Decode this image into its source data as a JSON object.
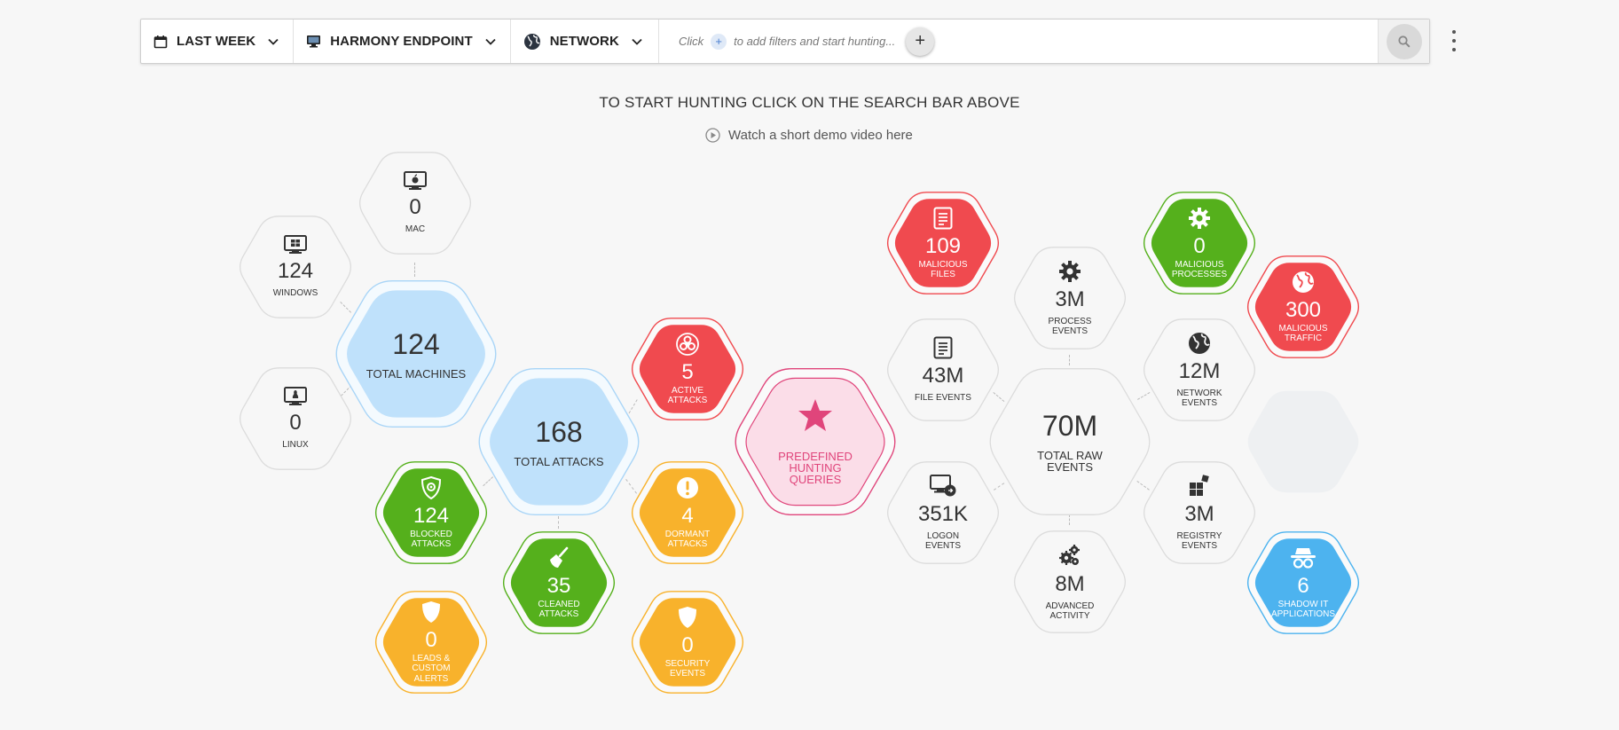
{
  "filters": {
    "time": "LAST WEEK",
    "source": "HARMONY ENDPOINT",
    "type": "NETWORK",
    "hint_click": "Click",
    "hint_rest": "to add filters and start hunting..."
  },
  "headline": "TO START HUNTING CLICK ON THE SEARCH BAR ABOVE",
  "demo_link": "Watch a short demo video here",
  "colors": {
    "red": "#f04a4f",
    "green": "#55b01c",
    "orange": "#f8b22c",
    "blue_light": "#bfe1fb",
    "blue": "#4db3ef",
    "pink": "#fbdde8",
    "pink_accent": "#e0457b"
  },
  "hex": {
    "mac": {
      "value": "0",
      "label": "MAC",
      "icon": "mac-icon"
    },
    "windows": {
      "value": "124",
      "label": "WINDOWS",
      "icon": "windows-icon"
    },
    "linux": {
      "value": "0",
      "label": "LINUX",
      "icon": "linux-icon"
    },
    "total_machines": {
      "value": "124",
      "label": "TOTAL MACHINES"
    },
    "total_attacks": {
      "value": "168",
      "label": "TOTAL ATTACKS"
    },
    "active_attacks": {
      "value": "5",
      "label": "ACTIVE ATTACKS",
      "icon": "biohazard-icon"
    },
    "dormant_attacks": {
      "value": "4",
      "label": "DORMANT ATTACKS",
      "icon": "exclamation-icon"
    },
    "blocked_attacks": {
      "value": "124",
      "label": "BLOCKED ATTACKS",
      "icon": "shield-icon"
    },
    "cleaned_attacks": {
      "value": "35",
      "label": "CLEANED ATTACKS",
      "icon": "broom-icon"
    },
    "leads_alerts": {
      "value": "0",
      "label": "LEADS & CUSTOM ALERTS",
      "icon": "shield-icon"
    },
    "security_events": {
      "value": "0",
      "label": "SECURITY EVENTS",
      "icon": "shield-icon"
    },
    "predefined": {
      "label": "PREDEFINED HUNTING QUERIES",
      "icon": "star-icon"
    },
    "malicious_files": {
      "value": "109",
      "label": "MALICIOUS FILES",
      "icon": "document-icon"
    },
    "file_events": {
      "value": "43M",
      "label": "FILE EVENTS",
      "icon": "document-icon"
    },
    "logon_events": {
      "value": "351K",
      "label": "LOGON EVENTS",
      "icon": "logon-icon"
    },
    "process_events": {
      "value": "3M",
      "label": "PROCESS EVENTS",
      "icon": "gear-icon"
    },
    "total_raw": {
      "value": "70M",
      "label": "TOTAL RAW EVENTS"
    },
    "advanced_activity": {
      "value": "8M",
      "label": "ADVANCED ACTIVITY",
      "icon": "gears-icon"
    },
    "malicious_processes": {
      "value": "0",
      "label": "MALICIOUS PROCESSES",
      "icon": "gear-icon"
    },
    "network_events": {
      "value": "12M",
      "label": "NETWORK EVENTS",
      "icon": "globe-icon"
    },
    "registry_events": {
      "value": "3M",
      "label": "REGISTRY EVENTS",
      "icon": "registry-icon"
    },
    "malicious_traffic": {
      "value": "300",
      "label": "MALICIOUS TRAFFIC",
      "icon": "globe-icon"
    },
    "shadow_it": {
      "value": "6",
      "label": "SHADOW IT APPLICATIONS",
      "icon": "spy-icon"
    }
  }
}
